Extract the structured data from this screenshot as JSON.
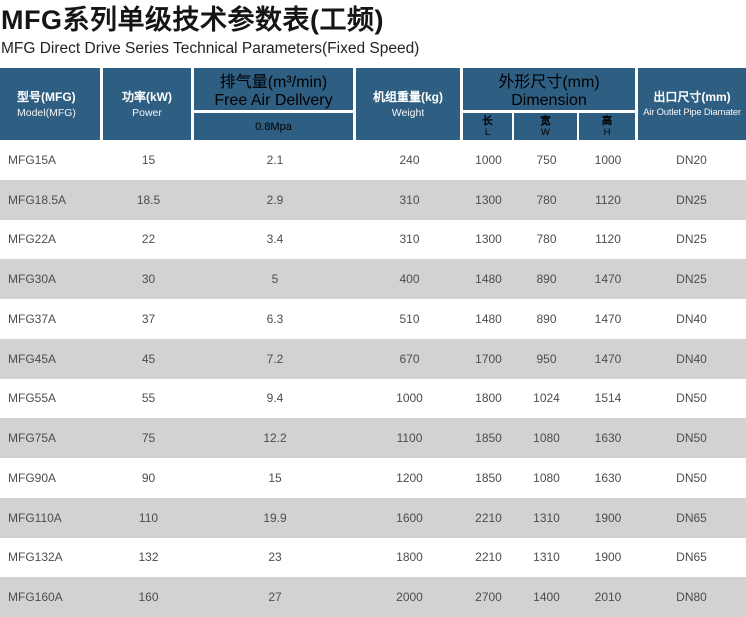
{
  "header": {
    "title_cn": "MFG系列单级技术参数表(工频)",
    "title_en": "MFG Direct Drive Series Technical Parameters(Fixed Speed)"
  },
  "table": {
    "columns": {
      "model": {
        "cn": "型号(MFG)",
        "en": "Model(MFG)"
      },
      "power": {
        "cn": "功率(kW)",
        "en": "Power"
      },
      "fad": {
        "cn": "排气量(m³/min)",
        "en": "Free Air Dellvery",
        "pressure": "0.8Mpa"
      },
      "weight": {
        "cn": "机组重量(kg)",
        "en": "Weight"
      },
      "dimension": {
        "cn": "外形尺寸(mm)",
        "en": "Dimension",
        "sub": [
          {
            "cn": "长",
            "en": "L"
          },
          {
            "cn": "宽",
            "en": "W"
          },
          {
            "cn": "高",
            "en": "H"
          }
        ]
      },
      "outlet": {
        "cn": "出口尺寸(mm)",
        "en": "Air Outlet Pipe Diamater"
      }
    },
    "rows": [
      {
        "model": "MFG15A",
        "power": "15",
        "fad": "2.1",
        "weight": "240",
        "l": "1000",
        "w": "750",
        "h": "1000",
        "outlet": "DN20"
      },
      {
        "model": "MFG18.5A",
        "power": "18.5",
        "fad": "2.9",
        "weight": "310",
        "l": "1300",
        "w": "780",
        "h": "1120",
        "outlet": "DN25"
      },
      {
        "model": "MFG22A",
        "power": "22",
        "fad": "3.4",
        "weight": "310",
        "l": "1300",
        "w": "780",
        "h": "1120",
        "outlet": "DN25"
      },
      {
        "model": "MFG30A",
        "power": "30",
        "fad": "5",
        "weight": "400",
        "l": "1480",
        "w": "890",
        "h": "1470",
        "outlet": "DN25"
      },
      {
        "model": "MFG37A",
        "power": "37",
        "fad": "6.3",
        "weight": "510",
        "l": "1480",
        "w": "890",
        "h": "1470",
        "outlet": "DN40"
      },
      {
        "model": "MFG45A",
        "power": "45",
        "fad": "7.2",
        "weight": "670",
        "l": "1700",
        "w": "950",
        "h": "1470",
        "outlet": "DN40"
      },
      {
        "model": "MFG55A",
        "power": "55",
        "fad": "9.4",
        "weight": "1000",
        "l": "1800",
        "w": "1024",
        "h": "1514",
        "outlet": "DN50"
      },
      {
        "model": "MFG75A",
        "power": "75",
        "fad": "12.2",
        "weight": "1100",
        "l": "1850",
        "w": "1080",
        "h": "1630",
        "outlet": "DN50"
      },
      {
        "model": "MFG90A",
        "power": "90",
        "fad": "15",
        "weight": "1200",
        "l": "1850",
        "w": "1080",
        "h": "1630",
        "outlet": "DN50"
      },
      {
        "model": "MFG110A",
        "power": "110",
        "fad": "19.9",
        "weight": "1600",
        "l": "2210",
        "w": "1310",
        "h": "1900",
        "outlet": "DN65"
      },
      {
        "model": "MFG132A",
        "power": "132",
        "fad": "23",
        "weight": "1800",
        "l": "2210",
        "w": "1310",
        "h": "1900",
        "outlet": "DN65"
      },
      {
        "model": "MFG160A",
        "power": "160",
        "fad": "27",
        "weight": "2000",
        "l": "2700",
        "w": "1400",
        "h": "2010",
        "outlet": "DN80"
      }
    ]
  },
  "colors": {
    "header_bg": "#2e5e82",
    "header_text": "#ffffff",
    "row_bg": "#ffffff",
    "row_alt_bg": "#d2d2d2",
    "body_text": "#4d4d4d",
    "title_text": "#151515"
  }
}
